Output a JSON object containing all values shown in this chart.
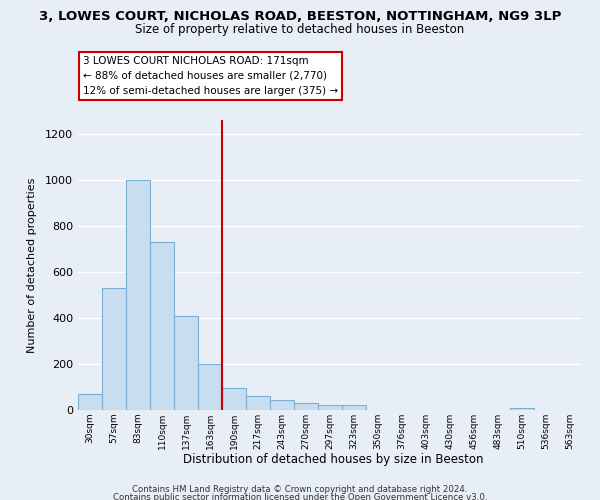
{
  "title": "3, LOWES COURT, NICHOLAS ROAD, BEESTON, NOTTINGHAM, NG9 3LP",
  "subtitle": "Size of property relative to detached houses in Beeston",
  "xlabel": "Distribution of detached houses by size in Beeston",
  "ylabel": "Number of detached properties",
  "bar_color": "#c8ddf0",
  "bar_edge_color": "#7bafd4",
  "bin_labels": [
    "30sqm",
    "57sqm",
    "83sqm",
    "110sqm",
    "137sqm",
    "163sqm",
    "190sqm",
    "217sqm",
    "243sqm",
    "270sqm",
    "297sqm",
    "323sqm",
    "350sqm",
    "376sqm",
    "403sqm",
    "430sqm",
    "456sqm",
    "483sqm",
    "510sqm",
    "536sqm",
    "563sqm"
  ],
  "bar_heights": [
    70,
    530,
    1000,
    730,
    410,
    200,
    95,
    60,
    45,
    30,
    20,
    20,
    0,
    0,
    0,
    0,
    0,
    0,
    10,
    0,
    0
  ],
  "ylim": [
    0,
    1260
  ],
  "yticks": [
    0,
    200,
    400,
    600,
    800,
    1000,
    1200
  ],
  "vline_x": 5.5,
  "vline_color": "#cc0000",
  "annotation_title": "3 LOWES COURT NICHOLAS ROAD: 171sqm",
  "annotation_line1": "← 88% of detached houses are smaller (2,770)",
  "annotation_line2": "12% of semi-detached houses are larger (375) →",
  "footer_line1": "Contains HM Land Registry data © Crown copyright and database right 2024.",
  "footer_line2": "Contains public sector information licensed under the Open Government Licence v3.0.",
  "background_color": "#e8eef5",
  "grid_color": "#ffffff"
}
